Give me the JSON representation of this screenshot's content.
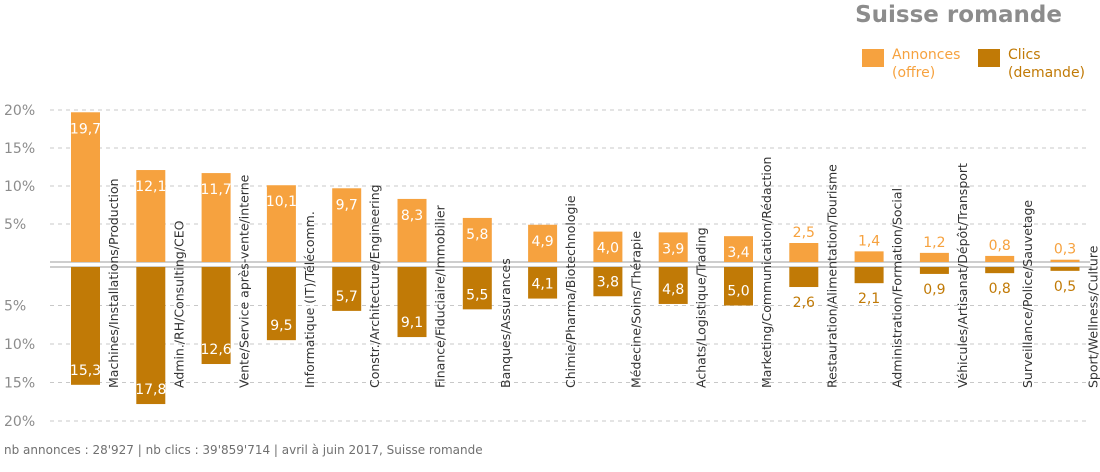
{
  "title": "Suisse romande",
  "footnote": "nb annonces : 28'927 | nb clics : 39'859'714 | avril à juin 2017, Suisse romande",
  "colors": {
    "annonces": "#f6a23f",
    "clics": "#c17a06",
    "axis_text": "#8c8c8c",
    "grid": "#c8c8c8"
  },
  "legend": [
    {
      "label": "Annonces\n(offre)",
      "color": "#f6a23f"
    },
    {
      "label": "Clics\n(demande)",
      "color": "#c17a06"
    }
  ],
  "chart_data": {
    "type": "bar",
    "title": "Suisse romande",
    "categories": [
      "Machines/Installations/Production",
      "Admin./RH/Consulting/CEO",
      "Vente/Service après-vente/interne",
      "Informatique (IT)/Télécomm.",
      "Constr./Architecture/Engineering",
      "Finance/Fiduciaire/Immobilier",
      "Banques/Assurances",
      "Chimie/Pharma/Biotechnologie",
      "Médecine/Soins/Thérapie",
      "Achats/Logistique/Trading",
      "Marketing/Communication/Rédaction",
      "Restauration/Alimentation/Tourisme",
      "Administration/Formation/Social",
      "Véhicules/Artisanat/Dépôt/Transport",
      "Surveillance/Police/Sauvetage",
      "Sport/Wellness/Culture"
    ],
    "series": [
      {
        "name": "Annonces (offre)",
        "values": [
          19.7,
          12.1,
          11.7,
          10.1,
          9.7,
          8.3,
          5.8,
          4.9,
          4.0,
          3.9,
          3.4,
          2.5,
          1.4,
          1.2,
          0.8,
          0.3
        ],
        "labels": [
          "19,7",
          "12,1",
          "11,7",
          "10,1",
          "9,7",
          "8,3",
          "5,8",
          "4,9",
          "4,0",
          "3,9",
          "3,4",
          "2,5",
          "1,4",
          "1,2",
          "0,8",
          "0,3"
        ]
      },
      {
        "name": "Clics (demande)",
        "values": [
          15.3,
          17.8,
          12.6,
          9.5,
          5.7,
          9.1,
          5.5,
          4.1,
          3.8,
          4.8,
          5.0,
          2.6,
          2.1,
          0.9,
          0.8,
          0.5
        ],
        "labels": [
          "15,3",
          "17,8",
          "12,6",
          "9,5",
          "5,7",
          "9,1",
          "5,5",
          "4,1",
          "3,8",
          "4,8",
          "5,0",
          "2,6",
          "2,1",
          "0,9",
          "0,8",
          "0,5"
        ]
      }
    ],
    "yticks_top": [
      "20%",
      "15%",
      "10%",
      "5%"
    ],
    "yticks_bottom": [
      "5%",
      "10%",
      "15%",
      "20%"
    ],
    "ylim": [
      0,
      20
    ],
    "legend_position": "top-right",
    "grid": true
  }
}
